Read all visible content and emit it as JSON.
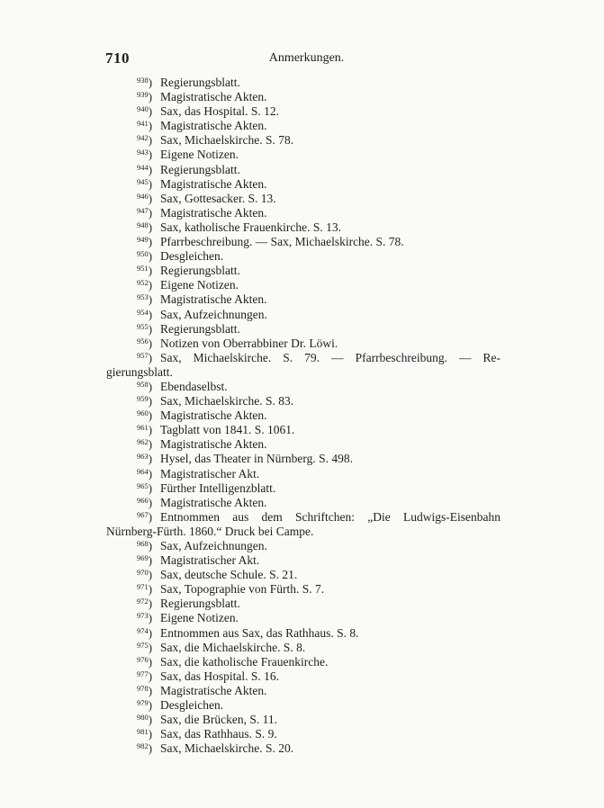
{
  "header": {
    "page_number": "710",
    "running_title": "Anmerkungen."
  },
  "notes": [
    {
      "n": "938",
      "text": "Regierungsblatt."
    },
    {
      "n": "939",
      "text": "Magistratische Akten."
    },
    {
      "n": "940",
      "text": "Sax, das Hospital.   S. 12."
    },
    {
      "n": "941",
      "text": "Magistratische Akten."
    },
    {
      "n": "942",
      "text": "Sax, Michaelskirche.   S. 78."
    },
    {
      "n": "943",
      "text": "Eigene Notizen."
    },
    {
      "n": "944",
      "text": "Regierungsblatt."
    },
    {
      "n": "945",
      "text": "Magistratische Akten."
    },
    {
      "n": "946",
      "text": "Sax, Gottesacker.   S. 13."
    },
    {
      "n": "947",
      "text": "Magistratische Akten."
    },
    {
      "n": "948",
      "text": "Sax, katholische Frauenkirche.   S. 13."
    },
    {
      "n": "949",
      "text": "Pfarrbeschreibung. — Sax, Michaelskirche.   S. 78."
    },
    {
      "n": "950",
      "text": "Desgleichen."
    },
    {
      "n": "951",
      "text": "Regierungsblatt."
    },
    {
      "n": "952",
      "text": "Eigene Notizen."
    },
    {
      "n": "953",
      "text": "Magistratische Akten."
    },
    {
      "n": "954",
      "text": "Sax, Aufzeichnungen."
    },
    {
      "n": "955",
      "text": "Regierungsblatt."
    },
    {
      "n": "956",
      "text": "Notizen von Oberrabbiner Dr. Löwi."
    },
    {
      "n": "957",
      "text": "Sax, Michaelskirche. S. 79. — Pfarrbeschreibung. — Re-",
      "continuation": "gierungsblatt."
    },
    {
      "n": "958",
      "text": "Ebendaselbst."
    },
    {
      "n": "959",
      "text": "Sax, Michaelskirche.   S. 83."
    },
    {
      "n": "960",
      "text": "Magistratische Akten."
    },
    {
      "n": "961",
      "text": "Tagblatt von 1841.   S. 1061."
    },
    {
      "n": "962",
      "text": "Magistratische Akten."
    },
    {
      "n": "963",
      "text": "Hysel, das Theater in Nürnberg.   S. 498."
    },
    {
      "n": "964",
      "text": "Magistratischer Akt."
    },
    {
      "n": "965",
      "text": "Fürther Intelligenzblatt."
    },
    {
      "n": "966",
      "text": "Magistratische Akten."
    },
    {
      "n": "967",
      "text": "Entnommen aus dem Schriftchen: „Die Ludwigs-Eisenbahn",
      "continuation": "Nürnberg-Fürth.  1860.“  Druck bei Campe."
    },
    {
      "n": "968",
      "text": "Sax, Aufzeichnungen."
    },
    {
      "n": "969",
      "text": "Magistratischer Akt."
    },
    {
      "n": "970",
      "text": "Sax, deutsche Schule.   S. 21."
    },
    {
      "n": "971",
      "text": "Sax, Topographie von Fürth.   S. 7."
    },
    {
      "n": "972",
      "text": "Regierungsblatt."
    },
    {
      "n": "973",
      "text": "Eigene Notizen."
    },
    {
      "n": "974",
      "text": "Entnommen aus Sax, das Rathhaus.   S. 8."
    },
    {
      "n": "975",
      "text": "Sax, die Michaelskirche.   S. 8."
    },
    {
      "n": "976",
      "text": "Sax, die katholische Frauenkirche."
    },
    {
      "n": "977",
      "text": "Sax, das Hospital. S. 16."
    },
    {
      "n": "978",
      "text": "Magistratische Akten."
    },
    {
      "n": "979",
      "text": "Desgleichen."
    },
    {
      "n": "980",
      "text": "Sax, die Brücken, S. 11."
    },
    {
      "n": "981",
      "text": "Sax, das Rathhaus.   S. 9."
    },
    {
      "n": "982",
      "text": "Sax, Michaelskirche.   S. 20."
    }
  ]
}
